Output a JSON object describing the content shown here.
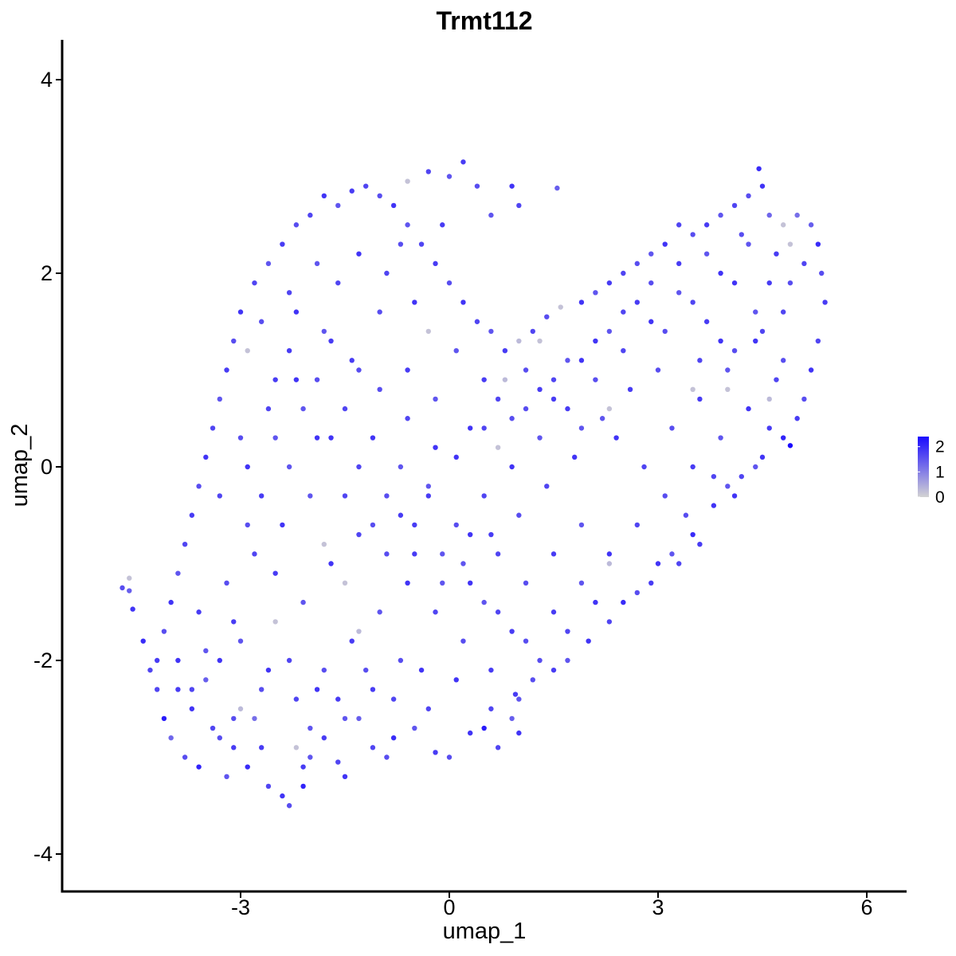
{
  "chart_data": {
    "type": "scatter",
    "title": "Trmt112",
    "xlabel": "umap_1",
    "ylabel": "umap_2",
    "xlim": [
      -5.8,
      6.5
    ],
    "ylim": [
      -4.3,
      4.4
    ],
    "xticks": [
      -3,
      0,
      3,
      6
    ],
    "yticks": [
      -4,
      -2,
      0,
      2,
      4
    ],
    "xtick_labels": [
      "-3",
      "0",
      "3",
      "6"
    ],
    "ytick_labels": [
      "-4",
      "-2",
      "0",
      "2",
      "4"
    ],
    "grid": false,
    "color_scale": {
      "low": "#d3d3d3",
      "high": "#1a0aff",
      "min": 0,
      "max": 2.4
    },
    "legend": {
      "position": "right",
      "ticks": [
        0,
        1,
        2
      ],
      "labels": [
        "0",
        "1",
        "2"
      ]
    },
    "points": [
      [
        -4.6,
        -1.28,
        1.4
      ],
      [
        -4.7,
        -1.25,
        1.6
      ],
      [
        -4.6,
        -1.15,
        0.2
      ],
      [
        -4.55,
        -1.47,
        1.9
      ],
      [
        -4.4,
        -1.8,
        2.0
      ],
      [
        -4.3,
        -2.1,
        1.7
      ],
      [
        -4.1,
        -2.6,
        2.2
      ],
      [
        -4.0,
        -2.8,
        1.3
      ],
      [
        -3.9,
        -2.3,
        1.8
      ],
      [
        -3.8,
        -3.0,
        1.6
      ],
      [
        -3.7,
        -2.5,
        1.9
      ],
      [
        -3.6,
        -3.1,
        2.1
      ],
      [
        -3.5,
        -2.2,
        1.4
      ],
      [
        -3.4,
        -2.7,
        1.7
      ],
      [
        -3.2,
        -3.2,
        1.5
      ],
      [
        -3.1,
        -2.9,
        1.8
      ],
      [
        -3.0,
        -2.5,
        0.3
      ],
      [
        -2.9,
        -3.1,
        2.0
      ],
      [
        -2.8,
        -2.6,
        1.2
      ],
      [
        -2.6,
        -3.3,
        1.7
      ],
      [
        -2.4,
        -3.4,
        1.9
      ],
      [
        -2.3,
        -3.5,
        1.6
      ],
      [
        -2.2,
        -2.9,
        0.2
      ],
      [
        -2.1,
        -3.3,
        2.1
      ],
      [
        -2.0,
        -3.0,
        1.5
      ],
      [
        -1.8,
        -2.8,
        1.8
      ],
      [
        -1.5,
        -3.2,
        1.9
      ],
      [
        -1.3,
        -2.6,
        1.4
      ],
      [
        -1.1,
        -2.9,
        1.7
      ],
      [
        -0.8,
        -2.8,
        2.0
      ],
      [
        -0.5,
        -2.7,
        1.5
      ],
      [
        -0.2,
        -2.95,
        1.8
      ],
      [
        0.0,
        -3.0,
        1.6
      ],
      [
        0.3,
        -2.75,
        1.9
      ],
      [
        0.5,
        -2.7,
        2.2
      ],
      [
        0.7,
        -2.9,
        1.7
      ],
      [
        0.9,
        -2.6,
        1.4
      ],
      [
        1.0,
        -2.75,
        1.9
      ],
      [
        1.2,
        -2.2,
        1.6
      ],
      [
        1.5,
        -2.1,
        1.8
      ],
      [
        1.7,
        -2.0,
        1.5
      ],
      [
        2.0,
        -1.8,
        1.9
      ],
      [
        2.3,
        -1.6,
        1.7
      ],
      [
        2.5,
        -1.4,
        2.0
      ],
      [
        2.7,
        -1.3,
        1.6
      ],
      [
        2.9,
        -1.2,
        1.8
      ],
      [
        3.0,
        -1.0,
        1.9
      ],
      [
        3.2,
        -0.9,
        1.5
      ],
      [
        3.3,
        -1.0,
        1.7
      ],
      [
        3.5,
        -0.7,
        2.0
      ],
      [
        3.6,
        -0.8,
        1.8
      ],
      [
        3.4,
        -0.5,
        1.6
      ],
      [
        3.8,
        -0.4,
        1.9
      ],
      [
        4.0,
        -0.2,
        1.5
      ],
      [
        4.2,
        -0.1,
        1.7
      ],
      [
        4.5,
        0.1,
        1.9
      ],
      [
        4.8,
        0.3,
        2.1
      ],
      [
        4.9,
        0.22,
        2.4
      ],
      [
        5.0,
        0.5,
        1.8
      ],
      [
        5.1,
        0.7,
        1.6
      ],
      [
        5.2,
        1.0,
        1.9
      ],
      [
        5.3,
        1.3,
        1.7
      ],
      [
        5.4,
        1.7,
        1.8
      ],
      [
        5.35,
        2.0,
        1.6
      ],
      [
        5.3,
        2.3,
        2.0
      ],
      [
        5.2,
        2.5,
        1.4
      ],
      [
        5.0,
        2.6,
        1.2
      ],
      [
        4.8,
        2.5,
        0.2
      ],
      [
        4.6,
        2.6,
        1.3
      ],
      [
        4.5,
        2.9,
        1.9
      ],
      [
        4.45,
        3.08,
        2.0
      ],
      [
        4.3,
        2.8,
        1.6
      ],
      [
        4.1,
        2.7,
        1.7
      ],
      [
        3.9,
        2.6,
        1.5
      ],
      [
        3.7,
        2.5,
        1.8
      ],
      [
        3.5,
        2.4,
        1.6
      ],
      [
        3.3,
        2.5,
        1.7
      ],
      [
        3.1,
        2.3,
        1.9
      ],
      [
        2.9,
        2.2,
        1.5
      ],
      [
        2.7,
        2.1,
        1.6
      ],
      [
        2.5,
        2.0,
        1.7
      ],
      [
        2.3,
        1.9,
        1.8
      ],
      [
        2.1,
        1.8,
        1.5
      ],
      [
        1.9,
        1.7,
        1.9
      ],
      [
        1.6,
        1.65,
        0.2
      ],
      [
        1.4,
        1.55,
        1.6
      ],
      [
        1.2,
        1.4,
        1.7
      ],
      [
        1.0,
        1.3,
        0.3
      ],
      [
        0.8,
        1.2,
        1.8
      ],
      [
        0.6,
        1.4,
        1.5
      ],
      [
        0.4,
        1.5,
        1.7
      ],
      [
        0.2,
        1.7,
        1.9
      ],
      [
        0.0,
        1.9,
        1.6
      ],
      [
        -0.2,
        2.1,
        1.8
      ],
      [
        -0.4,
        2.3,
        1.7
      ],
      [
        -0.6,
        2.5,
        1.5
      ],
      [
        -0.8,
        2.7,
        1.9
      ],
      [
        -1.0,
        2.8,
        1.6
      ],
      [
        -1.2,
        2.9,
        1.7
      ],
      [
        -1.4,
        2.85,
        1.8
      ],
      [
        -1.6,
        2.7,
        1.5
      ],
      [
        -1.8,
        2.8,
        1.9
      ],
      [
        -2.0,
        2.6,
        1.7
      ],
      [
        -2.2,
        2.5,
        1.6
      ],
      [
        -2.4,
        2.3,
        1.8
      ],
      [
        -2.6,
        2.1,
        1.5
      ],
      [
        -2.8,
        1.9,
        1.7
      ],
      [
        -3.0,
        1.6,
        1.9
      ],
      [
        -3.1,
        1.3,
        1.6
      ],
      [
        -3.2,
        1.0,
        1.8
      ],
      [
        -3.3,
        0.7,
        1.5
      ],
      [
        -3.4,
        0.4,
        1.7
      ],
      [
        -3.5,
        0.1,
        1.9
      ],
      [
        -3.6,
        -0.2,
        1.6
      ],
      [
        -3.7,
        -0.5,
        1.8
      ],
      [
        -3.8,
        -0.8,
        1.7
      ],
      [
        -3.9,
        -1.1,
        1.5
      ],
      [
        -4.0,
        -1.4,
        1.9
      ],
      [
        -4.1,
        -1.7,
        1.6
      ],
      [
        -4.2,
        -2.0,
        1.8
      ],
      [
        0.0,
        3.0,
        1.5
      ],
      [
        0.2,
        3.15,
        1.8
      ],
      [
        -0.3,
        3.05,
        1.7
      ],
      [
        -0.6,
        2.95,
        0.2
      ],
      [
        0.4,
        2.9,
        1.6
      ],
      [
        0.9,
        2.9,
        1.9
      ],
      [
        1.55,
        2.88,
        1.4
      ],
      [
        1.0,
        2.7,
        1.7
      ],
      [
        0.6,
        2.6,
        1.5
      ],
      [
        -0.1,
        2.5,
        1.8
      ],
      [
        -0.7,
        2.3,
        1.6
      ],
      [
        -1.3,
        2.2,
        1.9
      ],
      [
        -1.9,
        2.1,
        1.5
      ],
      [
        -2.3,
        1.8,
        1.7
      ],
      [
        -2.7,
        1.5,
        1.6
      ],
      [
        -2.9,
        1.2,
        0.2
      ],
      [
        -2.5,
        0.9,
        1.8
      ],
      [
        -2.1,
        0.6,
        1.5
      ],
      [
        -1.7,
        0.3,
        1.9
      ],
      [
        -1.3,
        0.0,
        1.7
      ],
      [
        -0.9,
        -0.3,
        1.6
      ],
      [
        -0.5,
        -0.6,
        1.8
      ],
      [
        -0.1,
        -0.9,
        1.5
      ],
      [
        0.3,
        -1.2,
        1.9
      ],
      [
        0.7,
        -1.5,
        1.7
      ],
      [
        1.1,
        -1.8,
        1.6
      ],
      [
        1.5,
        -1.5,
        1.8
      ],
      [
        1.9,
        -1.2,
        1.5
      ],
      [
        2.3,
        -0.9,
        1.9
      ],
      [
        2.7,
        -0.6,
        1.7
      ],
      [
        3.1,
        -0.3,
        1.6
      ],
      [
        3.5,
        0.0,
        1.8
      ],
      [
        3.9,
        0.3,
        1.5
      ],
      [
        4.3,
        0.6,
        1.9
      ],
      [
        4.7,
        0.9,
        1.7
      ],
      [
        4.1,
        1.2,
        1.6
      ],
      [
        3.7,
        1.5,
        1.8
      ],
      [
        3.3,
        1.8,
        1.5
      ],
      [
        2.9,
        1.5,
        1.9
      ],
      [
        2.5,
        1.2,
        1.7
      ],
      [
        2.1,
        0.9,
        1.6
      ],
      [
        1.7,
        0.6,
        1.8
      ],
      [
        1.3,
        0.3,
        1.5
      ],
      [
        0.9,
        0.0,
        1.9
      ],
      [
        0.5,
        -0.3,
        1.7
      ],
      [
        0.1,
        -0.6,
        1.6
      ],
      [
        -0.3,
        -0.3,
        1.8
      ],
      [
        -0.7,
        0.0,
        1.5
      ],
      [
        -1.1,
        0.3,
        1.9
      ],
      [
        -1.5,
        0.6,
        1.7
      ],
      [
        -1.9,
        0.9,
        1.6
      ],
      [
        -2.3,
        1.2,
        1.8
      ],
      [
        -2.0,
        -0.3,
        1.5
      ],
      [
        -2.4,
        -0.6,
        1.9
      ],
      [
        -2.8,
        -0.9,
        1.7
      ],
      [
        -3.2,
        -1.2,
        1.6
      ],
      [
        -3.6,
        -1.5,
        1.8
      ],
      [
        -3.0,
        -1.8,
        1.5
      ],
      [
        -2.6,
        -2.1,
        1.9
      ],
      [
        -2.2,
        -2.4,
        1.7
      ],
      [
        -1.8,
        -2.1,
        1.6
      ],
      [
        -1.4,
        -1.8,
        1.8
      ],
      [
        -1.0,
        -1.5,
        1.5
      ],
      [
        -0.6,
        -1.2,
        1.9
      ],
      [
        -0.2,
        -1.5,
        1.7
      ],
      [
        0.2,
        -1.8,
        1.6
      ],
      [
        0.6,
        -2.1,
        1.8
      ],
      [
        1.0,
        -2.4,
        1.5
      ],
      [
        -0.4,
        -2.1,
        1.9
      ],
      [
        -0.8,
        -2.4,
        1.7
      ],
      [
        -1.2,
        -2.1,
        1.6
      ],
      [
        -1.6,
        -2.4,
        1.8
      ],
      [
        -2.0,
        -2.7,
        1.5
      ],
      [
        -2.5,
        -1.6,
        0.2
      ],
      [
        -3.3,
        -2.0,
        1.9
      ],
      [
        -3.7,
        -2.3,
        1.7
      ],
      [
        -3.1,
        -2.6,
        1.6
      ],
      [
        -2.7,
        -2.9,
        1.8
      ],
      [
        -0.3,
        1.4,
        0.2
      ],
      [
        0.8,
        0.9,
        0.3
      ],
      [
        1.3,
        1.3,
        0.2
      ],
      [
        2.3,
        0.6,
        0.2
      ],
      [
        2.3,
        -1.0,
        0.3
      ],
      [
        3.5,
        0.8,
        0.2
      ],
      [
        4.0,
        0.8,
        0.2
      ],
      [
        4.6,
        0.7,
        0.3
      ],
      [
        0.7,
        0.2,
        0.2
      ],
      [
        -1.5,
        -1.2,
        0.2
      ],
      [
        -1.3,
        -1.7,
        0.3
      ],
      [
        -1.8,
        -0.8,
        0.2
      ],
      [
        -2.2,
        1.6,
        1.9
      ],
      [
        -1.6,
        1.9,
        1.7
      ],
      [
        -1.0,
        1.6,
        1.6
      ],
      [
        -0.6,
        1.0,
        1.8
      ],
      [
        -0.2,
        0.7,
        1.5
      ],
      [
        0.3,
        0.4,
        1.9
      ],
      [
        0.7,
        0.7,
        1.7
      ],
      [
        1.1,
        1.0,
        1.6
      ],
      [
        1.5,
        0.7,
        1.8
      ],
      [
        1.9,
        0.4,
        1.5
      ],
      [
        2.4,
        0.3,
        1.9
      ],
      [
        2.8,
        0.0,
        1.7
      ],
      [
        3.2,
        0.4,
        1.6
      ],
      [
        3.6,
        0.7,
        1.8
      ],
      [
        4.0,
        1.0,
        1.5
      ],
      [
        4.4,
        1.3,
        1.9
      ],
      [
        4.8,
        1.6,
        1.7
      ],
      [
        4.9,
        1.9,
        1.6
      ],
      [
        4.7,
        2.2,
        1.8
      ],
      [
        4.3,
        2.3,
        1.5
      ],
      [
        3.9,
        2.0,
        1.9
      ],
      [
        3.5,
        1.7,
        1.7
      ],
      [
        3.1,
        1.4,
        1.6
      ],
      [
        2.7,
        1.7,
        1.8
      ],
      [
        2.3,
        1.4,
        1.5
      ],
      [
        1.9,
        1.1,
        1.9
      ],
      [
        1.5,
        0.9,
        1.7
      ],
      [
        1.1,
        0.6,
        1.6
      ],
      [
        0.5,
        0.9,
        1.8
      ],
      [
        0.1,
        1.2,
        1.5
      ],
      [
        -0.5,
        1.7,
        1.9
      ],
      [
        -0.9,
        2.0,
        1.7
      ],
      [
        -1.3,
        1.0,
        1.6
      ],
      [
        -1.7,
        1.3,
        1.8
      ],
      [
        -2.5,
        0.3,
        1.5
      ],
      [
        -2.9,
        0.0,
        1.9
      ],
      [
        -3.3,
        -0.3,
        1.7
      ],
      [
        -2.9,
        -0.6,
        1.6
      ],
      [
        -2.5,
        -1.1,
        1.8
      ],
      [
        -2.1,
        -1.4,
        1.5
      ],
      [
        -1.7,
        -1.0,
        1.9
      ],
      [
        -1.3,
        -0.7,
        1.7
      ],
      [
        -0.9,
        -0.9,
        1.6
      ],
      [
        -0.5,
        -0.9,
        1.8
      ],
      [
        -0.1,
        -1.2,
        1.5
      ],
      [
        0.3,
        -0.7,
        1.9
      ],
      [
        0.7,
        -0.9,
        1.7
      ],
      [
        1.1,
        -1.2,
        1.6
      ],
      [
        1.5,
        -0.9,
        1.8
      ],
      [
        1.9,
        -0.6,
        1.5
      ],
      [
        2.1,
        -1.4,
        1.9
      ],
      [
        1.7,
        -1.7,
        1.7
      ],
      [
        1.3,
        -2.0,
        1.6
      ],
      [
        0.9,
        -1.7,
        1.8
      ],
      [
        0.5,
        -1.4,
        1.5
      ],
      [
        0.1,
        -2.2,
        1.9
      ],
      [
        -0.3,
        -2.5,
        1.7
      ],
      [
        -0.7,
        -2.0,
        1.6
      ],
      [
        -1.1,
        -2.3,
        1.8
      ],
      [
        -1.5,
        -2.6,
        1.5
      ],
      [
        -1.9,
        -2.3,
        1.9
      ],
      [
        -2.3,
        -2.0,
        1.7
      ],
      [
        -2.7,
        -2.3,
        1.6
      ],
      [
        -3.1,
        -1.6,
        1.8
      ],
      [
        -3.5,
        -1.9,
        1.5
      ],
      [
        -3.9,
        -2.0,
        1.9
      ],
      [
        -4.2,
        -2.3,
        1.7
      ],
      [
        -3.3,
        -2.8,
        1.6
      ],
      [
        -2.1,
        -3.1,
        1.8
      ],
      [
        -1.6,
        -3.05,
        1.7
      ],
      [
        -0.9,
        -3.0,
        1.6
      ],
      [
        0.6,
        -2.5,
        1.7
      ],
      [
        0.95,
        -2.35,
        1.8
      ],
      [
        4.2,
        2.4,
        1.6
      ],
      [
        4.9,
        2.3,
        0.2
      ],
      [
        5.1,
        2.1,
        1.7
      ],
      [
        4.6,
        1.9,
        1.8
      ],
      [
        4.4,
        1.6,
        1.5
      ],
      [
        3.9,
        1.3,
        1.9
      ],
      [
        3.6,
        1.1,
        1.7
      ],
      [
        3.0,
        1.0,
        1.6
      ],
      [
        2.6,
        0.8,
        1.8
      ],
      [
        2.2,
        0.5,
        1.5
      ],
      [
        1.8,
        0.1,
        1.9
      ],
      [
        1.4,
        -0.2,
        1.7
      ],
      [
        1.0,
        -0.5,
        1.6
      ],
      [
        0.6,
        -0.7,
        1.8
      ],
      [
        0.2,
        -1.0,
        1.5
      ],
      [
        -0.2,
        0.2,
        1.9
      ],
      [
        -0.6,
        0.5,
        1.7
      ],
      [
        -1.0,
        0.8,
        1.6
      ],
      [
        -1.4,
        1.1,
        1.8
      ],
      [
        -1.8,
        1.4,
        1.5
      ],
      [
        -2.2,
        0.9,
        1.9
      ],
      [
        -2.6,
        0.6,
        1.7
      ],
      [
        -3.0,
        0.3,
        1.6
      ],
      [
        -2.7,
        -0.3,
        1.8
      ],
      [
        -2.3,
        0.0,
        1.5
      ],
      [
        -1.9,
        0.3,
        1.9
      ],
      [
        -1.5,
        -0.3,
        1.7
      ],
      [
        -1.1,
        -0.6,
        1.6
      ],
      [
        -0.7,
        -0.5,
        1.8
      ],
      [
        -0.3,
        -0.2,
        1.5
      ],
      [
        0.1,
        0.1,
        1.9
      ],
      [
        0.5,
        0.4,
        1.7
      ],
      [
        0.9,
        0.5,
        1.6
      ],
      [
        1.3,
        0.8,
        1.8
      ],
      [
        1.7,
        1.1,
        1.5
      ],
      [
        2.1,
        1.3,
        1.9
      ],
      [
        2.5,
        1.6,
        1.7
      ],
      [
        2.9,
        1.9,
        1.6
      ],
      [
        3.3,
        2.1,
        1.8
      ],
      [
        3.7,
        2.2,
        1.5
      ],
      [
        4.1,
        1.9,
        1.9
      ],
      [
        4.5,
        1.4,
        1.7
      ],
      [
        4.8,
        1.1,
        1.6
      ],
      [
        4.6,
        0.4,
        1.8
      ],
      [
        4.4,
        0.0,
        1.5
      ],
      [
        4.1,
        -0.3,
        1.9
      ],
      [
        3.8,
        -0.1,
        1.7
      ]
    ]
  }
}
